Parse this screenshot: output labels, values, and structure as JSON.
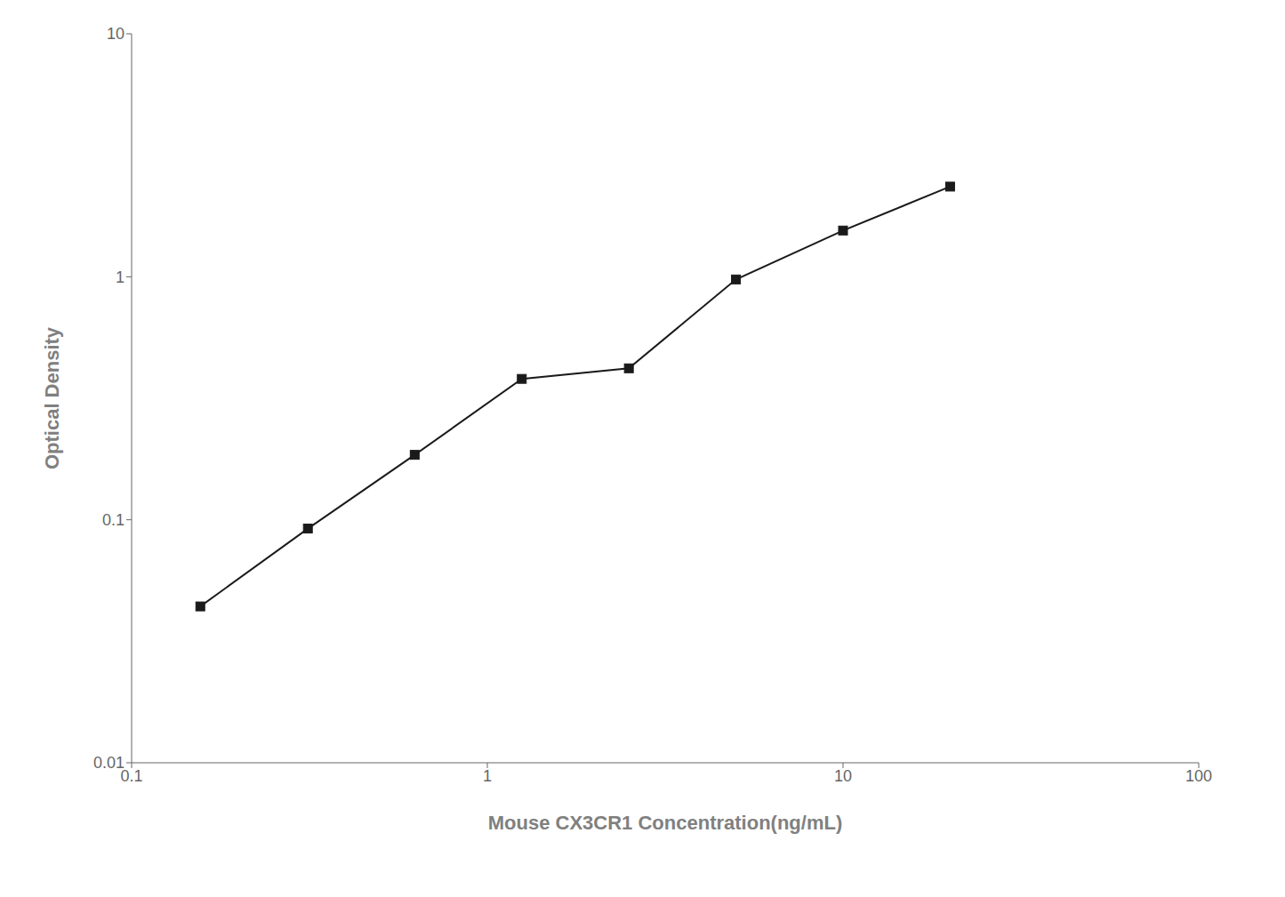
{
  "chart_data": {
    "type": "line",
    "xlabel": "Mouse CX3CR1 Concentration(ng/mL)",
    "ylabel": "Optical Density",
    "x": [
      0.156,
      0.313,
      0.625,
      1.25,
      2.5,
      5.0,
      10.0,
      20.0
    ],
    "values": [
      0.044,
      0.092,
      0.185,
      0.38,
      0.42,
      0.975,
      1.55,
      2.35
    ],
    "color": "#1a1a1a",
    "marker": "square",
    "log": true,
    "grid": false,
    "xlim": [
      0.1,
      100
    ],
    "ylim": [
      0.01,
      10
    ],
    "xticks": [
      0.1,
      1,
      10,
      100
    ],
    "yticks": [
      0.01,
      0.1,
      1,
      10
    ]
  }
}
